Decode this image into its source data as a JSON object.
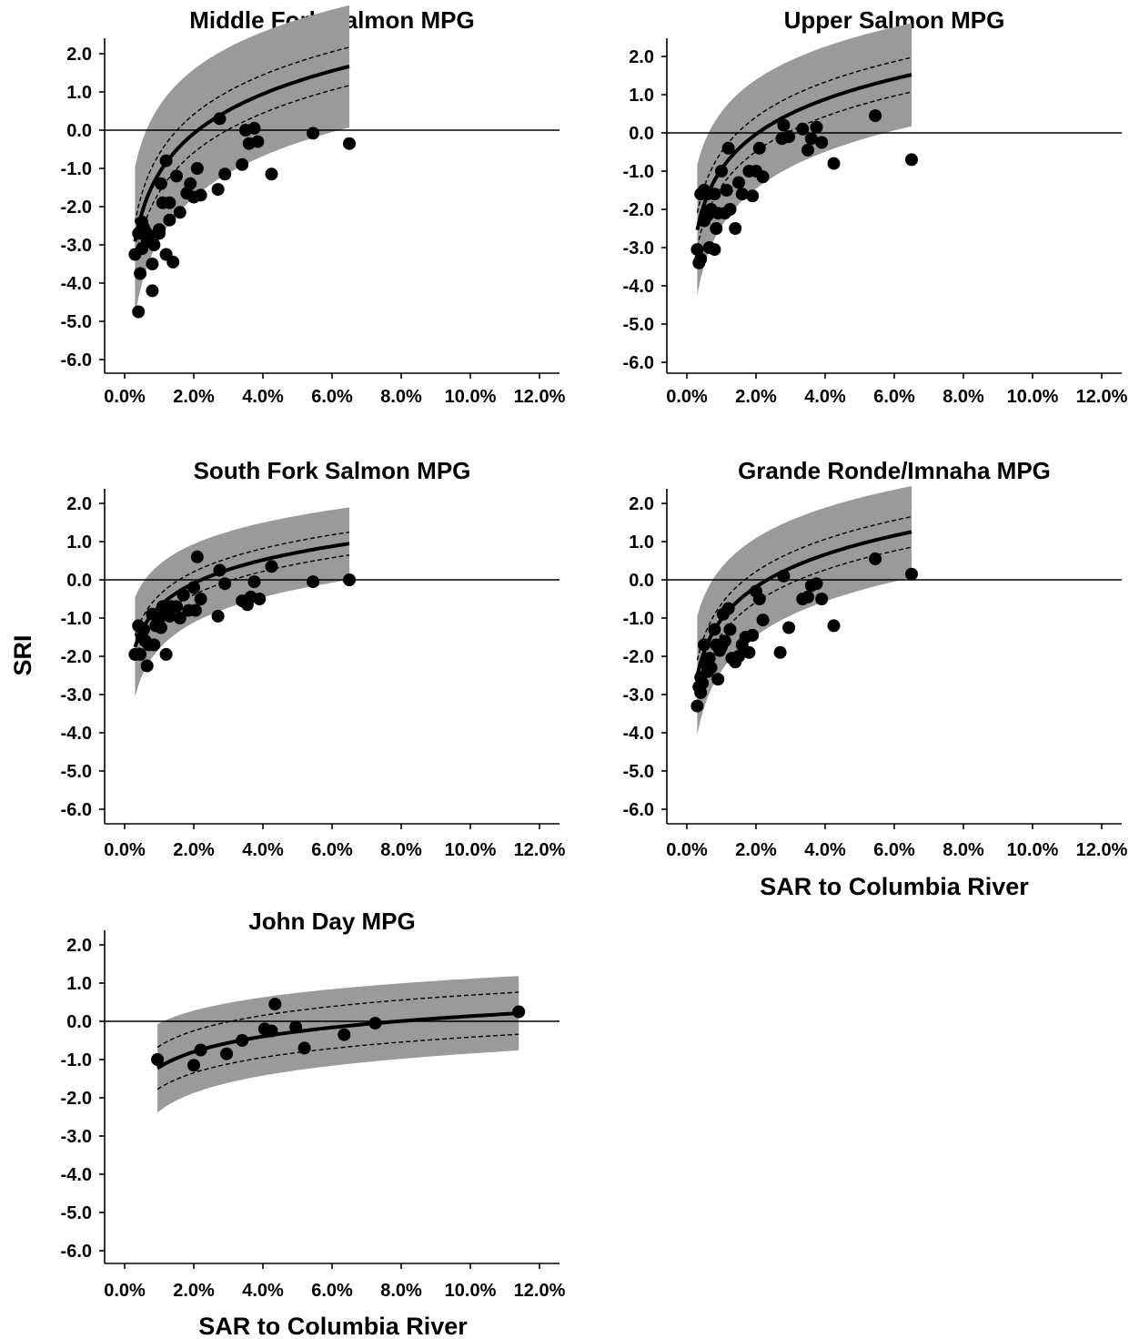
{
  "figure": {
    "y_axis_title": "SRI",
    "x_axis_title": "SAR to Columbia River"
  },
  "chart_data": [
    {
      "type": "scatter",
      "title": "Middle Fork Salmon MPG",
      "xlabel": "",
      "ylabel": "",
      "xlim": [
        0.0,
        12.0
      ],
      "ylim": [
        -6.0,
        2.0
      ],
      "x_ticks": [
        "0.0%",
        "2.0%",
        "4.0%",
        "6.0%",
        "8.0%",
        "10.0%",
        "12.0%"
      ],
      "y_ticks": [
        "2.0",
        "1.0",
        "0.0",
        "-1.0",
        "-2.0",
        "-3.0",
        "-4.0",
        "-5.0",
        "-6.0"
      ],
      "x_unit": "%",
      "reference_line_y": 0.0,
      "grid": false,
      "fit": {
        "form": "log",
        "a": -1.12,
        "b": 1.49,
        "ci_halfwidth": 0.5,
        "pi_halfwidth": 1.5,
        "x_start": 0.3,
        "x_end": 6.5
      },
      "points": [
        [
          0.3,
          -3.25
        ],
        [
          0.4,
          -4.75
        ],
        [
          0.4,
          -2.7
        ],
        [
          0.45,
          -3.75
        ],
        [
          0.5,
          -2.4
        ],
        [
          0.5,
          -3.1
        ],
        [
          0.55,
          -2.55
        ],
        [
          0.6,
          -2.65
        ],
        [
          0.65,
          -2.9
        ],
        [
          0.7,
          -2.75
        ],
        [
          0.8,
          -3.5
        ],
        [
          0.8,
          -4.2
        ],
        [
          0.85,
          -3.0
        ],
        [
          1.0,
          -2.6
        ],
        [
          1.0,
          -2.7
        ],
        [
          1.05,
          -1.4
        ],
        [
          1.1,
          -1.9
        ],
        [
          1.2,
          -0.8
        ],
        [
          1.2,
          -3.25
        ],
        [
          1.3,
          -2.35
        ],
        [
          1.3,
          -1.9
        ],
        [
          1.4,
          -3.45
        ],
        [
          1.5,
          -1.2
        ],
        [
          1.6,
          -2.15
        ],
        [
          1.8,
          -1.65
        ],
        [
          1.9,
          -1.4
        ],
        [
          2.0,
          -1.75
        ],
        [
          2.1,
          -1.0
        ],
        [
          2.2,
          -1.7
        ],
        [
          2.7,
          -1.55
        ],
        [
          2.75,
          0.3
        ],
        [
          2.9,
          -1.15
        ],
        [
          3.4,
          -0.9
        ],
        [
          3.5,
          0.0
        ],
        [
          3.6,
          -0.35
        ],
        [
          3.75,
          0.05
        ],
        [
          3.85,
          -0.3
        ],
        [
          4.25,
          -1.15
        ],
        [
          5.45,
          -0.08
        ],
        [
          6.5,
          -0.35
        ]
      ]
    },
    {
      "type": "scatter",
      "title": "Upper Salmon MPG",
      "xlabel": "",
      "ylabel": "",
      "xlim": [
        0.0,
        12.0
      ],
      "ylim": [
        -6.0,
        2.0
      ],
      "x_ticks": [
        "0.0%",
        "2.0%",
        "4.0%",
        "6.0%",
        "8.0%",
        "10.0%",
        "12.0%"
      ],
      "y_ticks": [
        "2.0",
        "1.0",
        "0.0",
        "-1.0",
        "-2.0",
        "-3.0",
        "-4.0",
        "-5.0",
        "-6.0"
      ],
      "x_unit": "%",
      "reference_line_y": 0.0,
      "grid": false,
      "fit": {
        "form": "log",
        "a": -0.95,
        "b": 1.32,
        "ci_halfwidth": 0.45,
        "pi_halfwidth": 1.25,
        "x_start": 0.3,
        "x_end": 6.5
      },
      "points": [
        [
          0.3,
          -3.05
        ],
        [
          0.35,
          -3.4
        ],
        [
          0.4,
          -1.6
        ],
        [
          0.4,
          -3.3
        ],
        [
          0.5,
          -1.5
        ],
        [
          0.5,
          -2.3
        ],
        [
          0.55,
          -2.1
        ],
        [
          0.6,
          -1.6
        ],
        [
          0.6,
          -2.15
        ],
        [
          0.65,
          -3.0
        ],
        [
          0.7,
          -2.0
        ],
        [
          0.8,
          -1.6
        ],
        [
          0.8,
          -3.05
        ],
        [
          0.85,
          -2.5
        ],
        [
          0.9,
          -2.1
        ],
        [
          1.0,
          -1.0
        ],
        [
          1.1,
          -2.1
        ],
        [
          1.15,
          -1.5
        ],
        [
          1.2,
          -0.4
        ],
        [
          1.25,
          -2.0
        ],
        [
          1.4,
          -2.5
        ],
        [
          1.5,
          -1.3
        ],
        [
          1.6,
          -1.6
        ],
        [
          1.8,
          -1.0
        ],
        [
          1.9,
          -1.65
        ],
        [
          2.0,
          -1.0
        ],
        [
          2.1,
          -0.4
        ],
        [
          2.2,
          -1.15
        ],
        [
          2.75,
          -0.15
        ],
        [
          2.8,
          0.2
        ],
        [
          2.95,
          -0.1
        ],
        [
          3.35,
          0.1
        ],
        [
          3.5,
          -0.45
        ],
        [
          3.6,
          -0.15
        ],
        [
          3.75,
          0.15
        ],
        [
          3.9,
          -0.25
        ],
        [
          4.25,
          -0.8
        ],
        [
          5.45,
          0.45
        ],
        [
          6.5,
          -0.7
        ]
      ]
    },
    {
      "type": "scatter",
      "title": "South Fork Salmon MPG",
      "xlabel": "",
      "ylabel": "SRI",
      "xlim": [
        0.0,
        12.0
      ],
      "ylim": [
        -6.0,
        2.0
      ],
      "x_ticks": [
        "0.0%",
        "2.0%",
        "4.0%",
        "6.0%",
        "8.0%",
        "10.0%",
        "12.0%"
      ],
      "y_ticks": [
        "2.0",
        "1.0",
        "0.0",
        "-1.0",
        "-2.0",
        "-3.0",
        "-4.0",
        "-5.0",
        "-6.0"
      ],
      "x_unit": "%",
      "reference_line_y": 0.0,
      "grid": false,
      "fit": {
        "form": "log",
        "a": -0.7,
        "b": 0.88,
        "ci_halfwidth": 0.3,
        "pi_halfwidth": 0.85,
        "x_start": 0.3,
        "x_end": 6.5
      },
      "points": [
        [
          0.3,
          -1.95
        ],
        [
          0.4,
          -1.2
        ],
        [
          0.45,
          -1.95
        ],
        [
          0.5,
          -1.5
        ],
        [
          0.55,
          -1.3
        ],
        [
          0.6,
          -1.6
        ],
        [
          0.65,
          -2.25
        ],
        [
          0.7,
          -1.7
        ],
        [
          0.8,
          -0.9
        ],
        [
          0.85,
          -1.7
        ],
        [
          0.9,
          -1.2
        ],
        [
          1.0,
          -1.0
        ],
        [
          1.05,
          -1.25
        ],
        [
          1.1,
          -0.7
        ],
        [
          1.2,
          -1.95
        ],
        [
          1.3,
          -0.95
        ],
        [
          1.35,
          -0.7
        ],
        [
          1.5,
          -0.7
        ],
        [
          1.6,
          -1.0
        ],
        [
          1.7,
          -0.4
        ],
        [
          1.85,
          -0.8
        ],
        [
          2.0,
          -0.2
        ],
        [
          2.05,
          -0.8
        ],
        [
          2.1,
          0.6
        ],
        [
          2.2,
          -0.5
        ],
        [
          2.7,
          -0.95
        ],
        [
          2.75,
          0.25
        ],
        [
          2.9,
          -0.1
        ],
        [
          3.4,
          -0.55
        ],
        [
          3.55,
          -0.65
        ],
        [
          3.65,
          -0.45
        ],
        [
          3.75,
          -0.05
        ],
        [
          3.9,
          -0.5
        ],
        [
          4.25,
          0.35
        ],
        [
          5.45,
          -0.05
        ],
        [
          6.5,
          0.0
        ]
      ]
    },
    {
      "type": "scatter",
      "title": "Grande Ronde/Imnaha MPG",
      "xlabel": "SAR to Columbia River",
      "ylabel": "",
      "xlim": [
        0.0,
        12.0
      ],
      "ylim": [
        -6.0,
        2.0
      ],
      "x_ticks": [
        "0.0%",
        "2.0%",
        "4.0%",
        "6.0%",
        "8.0%",
        "10.0%",
        "12.0%"
      ],
      "y_ticks": [
        "2.0",
        "1.0",
        "0.0",
        "-1.0",
        "-2.0",
        "-3.0",
        "-4.0",
        "-5.0",
        "-6.0"
      ],
      "x_unit": "%",
      "reference_line_y": 0.0,
      "grid": false,
      "fit": {
        "form": "log",
        "a": -1.03,
        "b": 1.22,
        "ci_halfwidth": 0.4,
        "pi_halfwidth": 1.1,
        "x_start": 0.3,
        "x_end": 6.5
      },
      "points": [
        [
          0.3,
          -3.3
        ],
        [
          0.35,
          -2.8
        ],
        [
          0.4,
          -2.95
        ],
        [
          0.4,
          -2.55
        ],
        [
          0.45,
          -2.7
        ],
        [
          0.5,
          -1.7
        ],
        [
          0.55,
          -2.2
        ],
        [
          0.6,
          -2.4
        ],
        [
          0.65,
          -2.05
        ],
        [
          0.7,
          -2.3
        ],
        [
          0.8,
          -1.3
        ],
        [
          0.85,
          -1.7
        ],
        [
          0.9,
          -2.6
        ],
        [
          0.95,
          -1.85
        ],
        [
          1.0,
          -1.75
        ],
        [
          1.05,
          -0.9
        ],
        [
          1.1,
          -1.6
        ],
        [
          1.2,
          -0.75
        ],
        [
          1.25,
          -1.3
        ],
        [
          1.3,
          -2.05
        ],
        [
          1.4,
          -2.15
        ],
        [
          1.5,
          -2.0
        ],
        [
          1.6,
          -1.7
        ],
        [
          1.7,
          -1.5
        ],
        [
          1.8,
          -1.9
        ],
        [
          1.9,
          -1.45
        ],
        [
          2.0,
          -0.3
        ],
        [
          2.1,
          -0.5
        ],
        [
          2.2,
          -1.05
        ],
        [
          2.7,
          -1.9
        ],
        [
          2.8,
          0.1
        ],
        [
          2.95,
          -1.25
        ],
        [
          3.35,
          -0.5
        ],
        [
          3.5,
          -0.45
        ],
        [
          3.6,
          -0.15
        ],
        [
          3.75,
          -0.1
        ],
        [
          3.9,
          -0.5
        ],
        [
          4.25,
          -1.2
        ],
        [
          5.45,
          0.55
        ],
        [
          6.5,
          0.15
        ]
      ]
    },
    {
      "type": "scatter",
      "title": "John Day MPG",
      "xlabel": "SAR to Columbia River",
      "ylabel": "",
      "xlim": [
        0.0,
        12.0
      ],
      "ylim": [
        -6.0,
        2.0
      ],
      "x_ticks": [
        "0.0%",
        "2.0%",
        "4.0%",
        "6.0%",
        "8.0%",
        "10.0%",
        "12.0%"
      ],
      "y_ticks": [
        "2.0",
        "1.0",
        "0.0",
        "-1.0",
        "-2.0",
        "-3.0",
        "-4.0",
        "-5.0",
        "-6.0"
      ],
      "x_unit": "%",
      "reference_line_y": 0.0,
      "grid": false,
      "fit": {
        "form": "log",
        "a": -1.2,
        "b": 0.58,
        "ci_halfwidth": 0.55,
        "pi_halfwidth": 0.9,
        "x_start": 0.95,
        "x_end": 11.4
      },
      "points": [
        [
          0.95,
          -1.0
        ],
        [
          2.0,
          -1.15
        ],
        [
          2.2,
          -0.75
        ],
        [
          2.95,
          -0.85
        ],
        [
          3.4,
          -0.5
        ],
        [
          4.05,
          -0.2
        ],
        [
          4.25,
          -0.25
        ],
        [
          4.35,
          0.45
        ],
        [
          4.95,
          -0.15
        ],
        [
          5.2,
          -0.7
        ],
        [
          6.35,
          -0.35
        ],
        [
          7.25,
          -0.05
        ],
        [
          11.4,
          0.25
        ]
      ]
    }
  ]
}
